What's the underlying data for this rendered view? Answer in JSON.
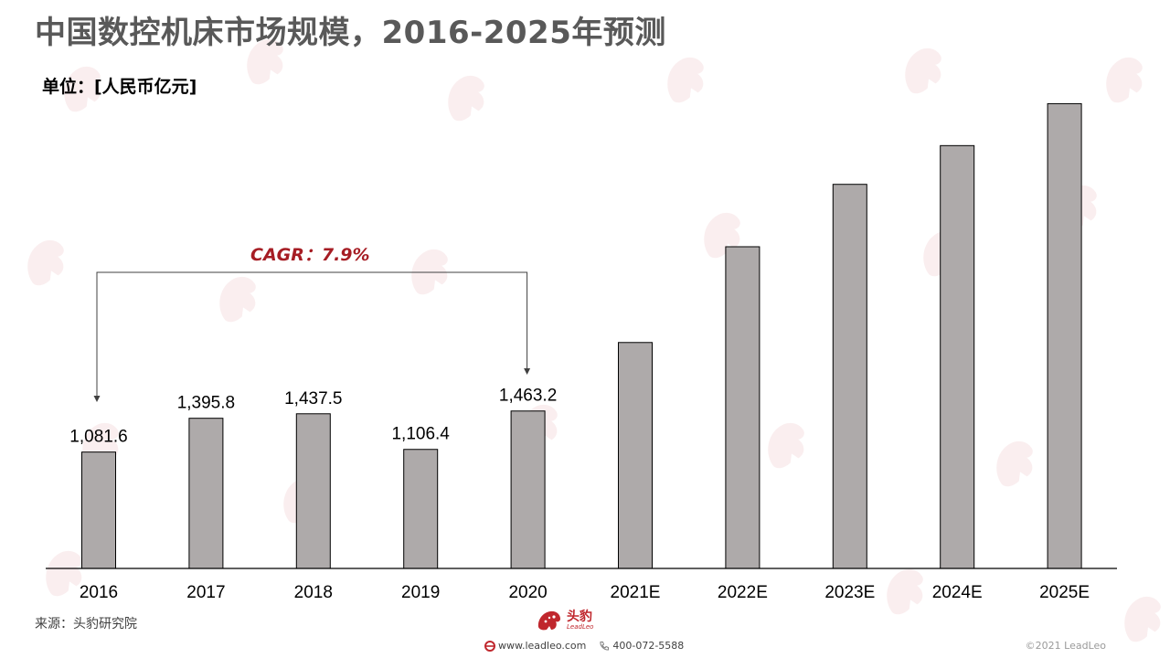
{
  "title": "中国数控机床市场规模，2016-2025年预测",
  "unit": "单位：[人民币亿元]",
  "source": "来源：头豹研究院",
  "footer": {
    "logo_text": "头豹",
    "logo_sub": "LeadLeo",
    "website": "www.leadleo.com",
    "phone": "400-072-5588",
    "copyright": "©2021 LeadLeo"
  },
  "colors": {
    "bar_fill": "#aeaaaa",
    "bar_stroke": "#000000",
    "annotation": "#a61d24",
    "title": "#595959",
    "brand": "#c0272d"
  },
  "chart_data": {
    "type": "bar",
    "categories": [
      "2016",
      "2017",
      "2018",
      "2019",
      "2020",
      "2021E",
      "2022E",
      "2023E",
      "2024E",
      "2025E"
    ],
    "values": [
      1081.6,
      1395.8,
      1437.5,
      1106.4,
      1463.2,
      2100,
      2990,
      3570,
      3930,
      4320
    ],
    "data_labels": [
      "1,081.6",
      "1,395.8",
      "1,437.5",
      "1,106.4",
      "1,463.2",
      "",
      "",
      "",
      "",
      ""
    ],
    "ylim": [
      0,
      4400
    ],
    "grid": false,
    "annotations": [
      {
        "text": "CAGR：7.9%",
        "from_category": "2016",
        "to_category": "2020"
      }
    ]
  }
}
